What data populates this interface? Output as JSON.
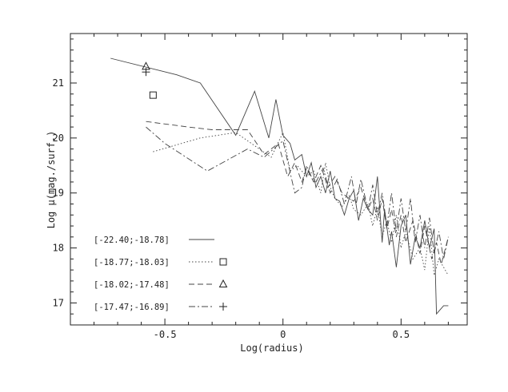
{
  "chart_data": {
    "type": "line",
    "title": "",
    "xlabel": "Log(radius)",
    "ylabel": "Log μ(mag./surf.)",
    "xlim": [
      -0.9,
      0.78
    ],
    "ylim": [
      16.6,
      21.9
    ],
    "x_ticks": [
      -0.5,
      0,
      0.5
    ],
    "x_tick_labels": [
      "-0.5",
      "0",
      "0.5"
    ],
    "y_ticks": [
      17,
      18,
      19,
      20,
      21
    ],
    "y_tick_labels": [
      "17",
      "18",
      "19",
      "20",
      "21"
    ],
    "grid": false,
    "legend_position": "bottom-left",
    "colors": {
      "axis": "#222222",
      "series": "#444444"
    },
    "series": [
      {
        "name": "[-22.40;-18.78]",
        "dash": "solid",
        "marker": "none",
        "points": [
          [
            -0.73,
            21.45
          ],
          [
            -0.45,
            21.15
          ],
          [
            -0.35,
            21.0
          ],
          [
            -0.2,
            20.05
          ],
          [
            -0.12,
            20.85
          ],
          [
            -0.06,
            20.0
          ],
          [
            -0.03,
            20.7
          ],
          [
            0.0,
            20.05
          ],
          [
            0.03,
            19.9
          ],
          [
            0.05,
            19.6
          ],
          [
            0.08,
            19.7
          ],
          [
            0.1,
            19.3
          ],
          [
            0.12,
            19.55
          ],
          [
            0.14,
            19.1
          ],
          [
            0.16,
            19.3
          ],
          [
            0.18,
            19.0
          ],
          [
            0.2,
            19.4
          ],
          [
            0.22,
            18.9
          ],
          [
            0.24,
            18.85
          ],
          [
            0.26,
            18.6
          ],
          [
            0.28,
            18.9
          ],
          [
            0.3,
            19.05
          ],
          [
            0.32,
            18.5
          ],
          [
            0.34,
            18.9
          ],
          [
            0.36,
            18.7
          ],
          [
            0.38,
            18.6
          ],
          [
            0.4,
            19.3
          ],
          [
            0.42,
            18.1
          ],
          [
            0.43,
            18.7
          ],
          [
            0.45,
            18.05
          ],
          [
            0.46,
            18.3
          ],
          [
            0.48,
            17.65
          ],
          [
            0.5,
            18.4
          ],
          [
            0.52,
            18.6
          ],
          [
            0.54,
            17.7
          ],
          [
            0.56,
            18.2
          ],
          [
            0.58,
            18.0
          ],
          [
            0.6,
            18.5
          ],
          [
            0.62,
            18.0
          ],
          [
            0.64,
            18.35
          ],
          [
            0.65,
            16.8
          ],
          [
            0.68,
            16.95
          ],
          [
            0.7,
            16.95
          ]
        ]
      },
      {
        "name": "[-18.77;-18.03]",
        "dash": "dotted",
        "marker": "square",
        "marker_point": [
          -0.55,
          20.78
        ],
        "points": [
          [
            -0.55,
            19.75
          ],
          [
            -0.35,
            20.0
          ],
          [
            -0.2,
            20.1
          ],
          [
            -0.1,
            19.8
          ],
          [
            -0.05,
            19.65
          ],
          [
            0.0,
            20.1
          ],
          [
            0.03,
            19.4
          ],
          [
            0.06,
            19.5
          ],
          [
            0.1,
            19.3
          ],
          [
            0.13,
            19.4
          ],
          [
            0.16,
            19.0
          ],
          [
            0.18,
            19.55
          ],
          [
            0.2,
            19.1
          ],
          [
            0.22,
            18.9
          ],
          [
            0.25,
            18.75
          ],
          [
            0.28,
            18.95
          ],
          [
            0.3,
            18.7
          ],
          [
            0.33,
            18.6
          ],
          [
            0.36,
            18.8
          ],
          [
            0.38,
            18.4
          ],
          [
            0.4,
            18.75
          ],
          [
            0.42,
            18.2
          ],
          [
            0.44,
            18.5
          ],
          [
            0.46,
            18.1
          ],
          [
            0.48,
            18.6
          ],
          [
            0.5,
            18.0
          ],
          [
            0.52,
            18.3
          ],
          [
            0.55,
            17.8
          ],
          [
            0.58,
            18.0
          ],
          [
            0.6,
            17.6
          ],
          [
            0.62,
            18.4
          ],
          [
            0.64,
            17.5
          ],
          [
            0.66,
            17.8
          ],
          [
            0.7,
            17.5
          ]
        ]
      },
      {
        "name": "[-18.02;-17.48]",
        "dash": "dashed",
        "marker": "triangle",
        "marker_point": [
          -0.58,
          21.3
        ],
        "points": [
          [
            -0.58,
            20.3
          ],
          [
            -0.4,
            20.2
          ],
          [
            -0.3,
            20.15
          ],
          [
            -0.15,
            20.15
          ],
          [
            -0.08,
            19.7
          ],
          [
            -0.02,
            19.9
          ],
          [
            0.02,
            19.3
          ],
          [
            0.05,
            19.55
          ],
          [
            0.08,
            19.2
          ],
          [
            0.1,
            19.45
          ],
          [
            0.13,
            19.2
          ],
          [
            0.16,
            19.5
          ],
          [
            0.19,
            19.1
          ],
          [
            0.22,
            19.3
          ],
          [
            0.25,
            19.0
          ],
          [
            0.28,
            18.9
          ],
          [
            0.3,
            18.85
          ],
          [
            0.33,
            19.1
          ],
          [
            0.36,
            18.7
          ],
          [
            0.38,
            18.9
          ],
          [
            0.4,
            18.5
          ],
          [
            0.42,
            18.9
          ],
          [
            0.44,
            18.35
          ],
          [
            0.46,
            18.7
          ],
          [
            0.48,
            18.2
          ],
          [
            0.5,
            18.6
          ],
          [
            0.52,
            18.1
          ],
          [
            0.55,
            18.5
          ],
          [
            0.58,
            17.9
          ],
          [
            0.6,
            18.4
          ],
          [
            0.63,
            17.8
          ],
          [
            0.65,
            18.1
          ],
          [
            0.67,
            17.7
          ],
          [
            0.7,
            18.2
          ]
        ]
      },
      {
        "name": "[-17.47;-16.89]",
        "dash": "dashdot",
        "marker": "plus",
        "marker_point": [
          -0.58,
          21.2
        ],
        "points": [
          [
            -0.58,
            20.2
          ],
          [
            -0.5,
            19.9
          ],
          [
            -0.32,
            19.4
          ],
          [
            -0.15,
            19.8
          ],
          [
            -0.08,
            19.65
          ],
          [
            0.0,
            19.95
          ],
          [
            0.05,
            19.0
          ],
          [
            0.08,
            19.1
          ],
          [
            0.1,
            19.5
          ],
          [
            0.12,
            19.3
          ],
          [
            0.14,
            19.2
          ],
          [
            0.17,
            19.45
          ],
          [
            0.2,
            19.0
          ],
          [
            0.23,
            19.25
          ],
          [
            0.26,
            18.8
          ],
          [
            0.29,
            19.3
          ],
          [
            0.31,
            18.8
          ],
          [
            0.33,
            19.25
          ],
          [
            0.36,
            18.7
          ],
          [
            0.38,
            19.15
          ],
          [
            0.4,
            18.6
          ],
          [
            0.42,
            19.0
          ],
          [
            0.44,
            18.4
          ],
          [
            0.46,
            19.0
          ],
          [
            0.48,
            18.3
          ],
          [
            0.5,
            18.9
          ],
          [
            0.52,
            18.3
          ],
          [
            0.54,
            18.9
          ],
          [
            0.56,
            18.1
          ],
          [
            0.58,
            18.6
          ],
          [
            0.6,
            18.0
          ],
          [
            0.62,
            18.55
          ],
          [
            0.64,
            17.9
          ],
          [
            0.66,
            18.3
          ],
          [
            0.68,
            17.8
          ],
          [
            0.7,
            18.2
          ]
        ]
      }
    ]
  }
}
